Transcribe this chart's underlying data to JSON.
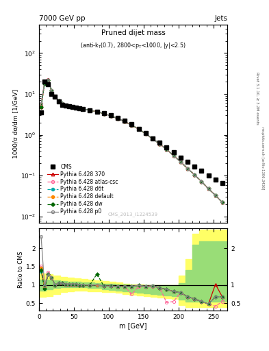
{
  "title_top_left": "7000 GeV pp",
  "title_top_right": "Jets",
  "plot_title": "Pruned dijet mass",
  "plot_subtitle": "(anti-k_{T}(0.7), 2800<p_{T}<1000, |y|<2.5)",
  "ylabel_main": "1000/σ dσ/dm [1/GeV]",
  "ylabel_ratio": "Ratio to CMS",
  "xlabel": "m [GeV]",
  "watermark": "CMS_2013_I1224539",
  "xlim": [
    0,
    270
  ],
  "ylim_main": [
    0.007,
    500
  ],
  "ylim_ratio": [
    0.3,
    2.55
  ],
  "cms_x": [
    3,
    8,
    13,
    18,
    23,
    28,
    33,
    38,
    43,
    48,
    53,
    58,
    63,
    73,
    83,
    93,
    103,
    113,
    123,
    133,
    143,
    153,
    163,
    173,
    183,
    193,
    203,
    213,
    223,
    233,
    243,
    253,
    263
  ],
  "cms_y": [
    3.5,
    20,
    17,
    10,
    8.5,
    6.5,
    5.5,
    5.2,
    5.0,
    4.8,
    4.6,
    4.5,
    4.3,
    4.0,
    3.7,
    3.4,
    3.0,
    2.6,
    2.2,
    1.8,
    1.4,
    1.1,
    0.82,
    0.65,
    0.5,
    0.38,
    0.28,
    0.22,
    0.17,
    0.13,
    0.1,
    0.08,
    0.065
  ],
  "mc_x": [
    3,
    8,
    13,
    18,
    23,
    28,
    33,
    38,
    43,
    48,
    53,
    58,
    63,
    73,
    83,
    93,
    103,
    113,
    123,
    133,
    143,
    153,
    163,
    173,
    183,
    193,
    203,
    213,
    223,
    233,
    243,
    253,
    263
  ],
  "py370_y": [
    4.9,
    18.5,
    22,
    12,
    8.5,
    6.8,
    5.8,
    5.3,
    5.1,
    4.9,
    4.7,
    4.5,
    4.3,
    4.0,
    3.7,
    3.3,
    2.9,
    2.5,
    2.1,
    1.72,
    1.38,
    1.06,
    0.8,
    0.6,
    0.44,
    0.31,
    0.22,
    0.15,
    0.105,
    0.072,
    0.048,
    0.033,
    0.022
  ],
  "pyatlas_y": [
    5.3,
    19.5,
    23,
    12,
    8.5,
    6.8,
    5.8,
    5.3,
    5.1,
    4.9,
    4.7,
    4.5,
    4.3,
    4.0,
    3.7,
    3.3,
    2.9,
    2.5,
    2.1,
    1.72,
    1.38,
    1.06,
    0.8,
    0.6,
    0.44,
    0.31,
    0.22,
    0.15,
    0.105,
    0.072,
    0.048,
    0.033,
    0.022
  ],
  "pyd6t_y": [
    4.8,
    18.0,
    22,
    12,
    8.5,
    6.8,
    5.8,
    5.3,
    5.1,
    4.9,
    4.7,
    4.5,
    4.3,
    4.0,
    3.7,
    3.3,
    2.9,
    2.5,
    2.1,
    1.72,
    1.38,
    1.06,
    0.8,
    0.6,
    0.44,
    0.31,
    0.22,
    0.15,
    0.105,
    0.072,
    0.048,
    0.033,
    0.022
  ],
  "pydefault_y": [
    5.1,
    18.5,
    22,
    12,
    8.5,
    6.8,
    5.8,
    5.3,
    5.1,
    4.9,
    4.7,
    4.5,
    4.3,
    4.0,
    3.7,
    3.3,
    2.9,
    2.5,
    2.1,
    1.72,
    1.38,
    1.06,
    0.8,
    0.6,
    0.44,
    0.31,
    0.22,
    0.15,
    0.105,
    0.072,
    0.048,
    0.033,
    0.022
  ],
  "pydw_y": [
    4.9,
    18.0,
    22,
    12,
    8.5,
    6.8,
    5.8,
    5.3,
    5.1,
    4.9,
    4.7,
    4.5,
    4.3,
    4.0,
    3.7,
    3.3,
    2.9,
    2.5,
    2.1,
    1.72,
    1.38,
    1.06,
    0.8,
    0.6,
    0.44,
    0.31,
    0.22,
    0.15,
    0.105,
    0.072,
    0.048,
    0.033,
    0.022
  ],
  "pyp0_y": [
    5.8,
    19.5,
    22,
    12,
    8.5,
    6.8,
    5.8,
    5.3,
    5.1,
    4.9,
    4.7,
    4.5,
    4.3,
    4.0,
    3.7,
    3.3,
    2.9,
    2.5,
    2.1,
    1.72,
    1.38,
    1.06,
    0.8,
    0.6,
    0.44,
    0.31,
    0.22,
    0.15,
    0.105,
    0.072,
    0.048,
    0.033,
    0.022
  ],
  "ratio_py370": [
    1.4,
    0.93,
    1.29,
    1.2,
    1.0,
    1.05,
    1.05,
    1.02,
    1.02,
    1.02,
    1.02,
    1.0,
    1.0,
    1.0,
    1.0,
    0.97,
    0.97,
    0.96,
    0.95,
    0.96,
    0.99,
    0.96,
    0.98,
    0.92,
    0.88,
    0.82,
    0.79,
    0.68,
    0.62,
    0.55,
    0.48,
    1.02,
    0.67
  ],
  "ratio_pyatlas": [
    1.52,
    0.97,
    1.35,
    1.2,
    1.0,
    1.05,
    1.05,
    1.02,
    1.02,
    1.02,
    1.02,
    1.0,
    1.0,
    1.0,
    1.0,
    0.97,
    0.97,
    0.96,
    0.95,
    0.75,
    0.96,
    0.95,
    0.96,
    0.92,
    0.52,
    0.55,
    0.79,
    0.68,
    0.62,
    0.55,
    0.48,
    0.42,
    0.55
  ],
  "ratio_pyd6t": [
    1.37,
    0.9,
    1.29,
    1.2,
    1.0,
    1.05,
    1.05,
    1.02,
    1.02,
    1.02,
    1.02,
    1.0,
    1.0,
    1.0,
    1.0,
    0.97,
    0.97,
    0.96,
    0.95,
    0.96,
    0.99,
    0.96,
    0.98,
    0.92,
    0.88,
    0.82,
    0.79,
    0.68,
    0.62,
    0.55,
    0.48,
    0.68,
    0.67
  ],
  "ratio_pydefault": [
    1.46,
    0.93,
    1.29,
    1.2,
    1.0,
    1.05,
    1.05,
    1.02,
    1.02,
    1.02,
    1.02,
    1.0,
    1.0,
    1.0,
    1.0,
    0.97,
    0.97,
    0.96,
    0.95,
    0.96,
    0.99,
    0.96,
    0.98,
    0.92,
    0.88,
    0.82,
    0.79,
    0.68,
    0.62,
    0.55,
    0.48,
    0.68,
    0.67
  ],
  "ratio_pydw": [
    1.4,
    0.9,
    1.29,
    1.2,
    1.0,
    1.05,
    1.05,
    1.02,
    1.02,
    1.02,
    1.02,
    1.0,
    1.0,
    1.0,
    1.3,
    0.97,
    0.97,
    0.96,
    0.95,
    0.96,
    0.99,
    0.96,
    0.98,
    0.92,
    0.88,
    0.82,
    0.79,
    0.68,
    0.62,
    0.55,
    0.48,
    0.68,
    0.67
  ],
  "ratio_pyp0": [
    2.32,
    0.97,
    1.29,
    1.2,
    1.0,
    1.05,
    1.05,
    1.02,
    1.02,
    1.02,
    1.02,
    1.0,
    1.0,
    1.0,
    1.0,
    0.97,
    0.97,
    0.96,
    0.95,
    0.96,
    0.99,
    0.96,
    0.98,
    0.92,
    0.88,
    0.82,
    0.79,
    0.68,
    0.62,
    0.55,
    0.48,
    0.68,
    0.67
  ],
  "band_x": [
    0,
    10,
    20,
    30,
    40,
    50,
    60,
    70,
    80,
    90,
    100,
    110,
    120,
    130,
    140,
    150,
    160,
    170,
    180,
    190,
    200,
    210,
    220,
    230,
    240,
    250,
    260,
    270
  ],
  "band_green_lo": [
    0.85,
    0.88,
    0.91,
    0.93,
    0.94,
    0.94,
    0.93,
    0.92,
    0.91,
    0.89,
    0.87,
    0.85,
    0.83,
    0.81,
    0.79,
    0.77,
    0.75,
    0.73,
    0.71,
    0.69,
    0.6,
    0.55,
    0.55,
    0.55,
    0.55,
    0.55,
    0.55,
    0.55
  ],
  "band_green_hi": [
    1.15,
    1.14,
    1.12,
    1.1,
    1.09,
    1.08,
    1.07,
    1.06,
    1.05,
    1.04,
    1.03,
    1.02,
    1.01,
    1.0,
    1.0,
    1.0,
    1.0,
    1.0,
    1.0,
    1.0,
    1.05,
    1.4,
    2.1,
    2.2,
    2.2,
    2.2,
    2.2,
    2.2
  ],
  "band_yellow_lo": [
    0.68,
    0.7,
    0.76,
    0.8,
    0.83,
    0.84,
    0.84,
    0.83,
    0.82,
    0.81,
    0.8,
    0.78,
    0.76,
    0.74,
    0.72,
    0.7,
    0.68,
    0.66,
    0.64,
    0.62,
    0.45,
    0.4,
    0.4,
    0.4,
    0.4,
    0.4,
    0.4,
    0.4
  ],
  "band_yellow_hi": [
    1.32,
    1.3,
    1.26,
    1.22,
    1.2,
    1.18,
    1.16,
    1.14,
    1.12,
    1.1,
    1.08,
    1.06,
    1.04,
    1.02,
    1.01,
    1.0,
    1.0,
    1.0,
    1.0,
    1.0,
    1.25,
    1.7,
    2.4,
    2.5,
    2.5,
    2.5,
    2.5,
    2.5
  ],
  "color_370": "#cc0000",
  "color_atlas": "#ff6699",
  "color_d6t": "#00aaaa",
  "color_default": "#ff8800",
  "color_dw": "#006600",
  "color_p0": "#888888",
  "bg_color": "#ffffff"
}
